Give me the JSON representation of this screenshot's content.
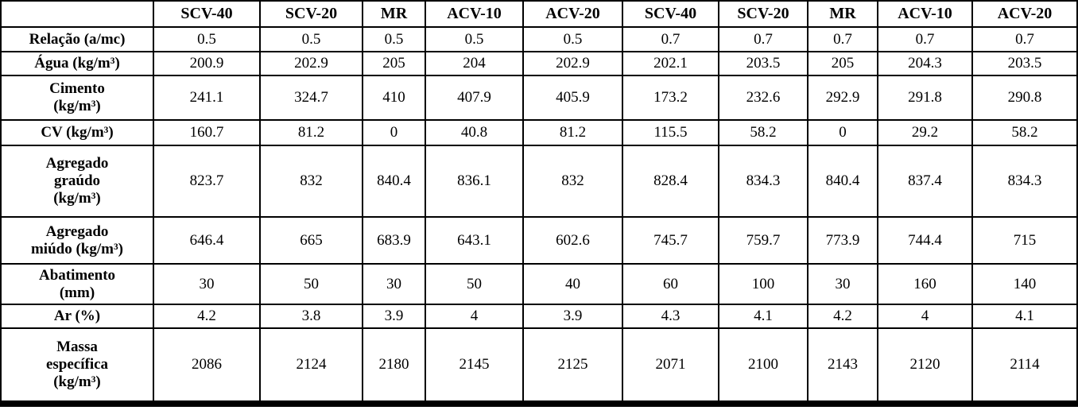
{
  "colors": {
    "border": "#000000",
    "text": "#000000",
    "background": "#ffffff"
  },
  "table": {
    "corner_label": "",
    "columns": [
      "SCV-40",
      "SCV-20",
      "MR",
      "ACV-10",
      "ACV-20",
      "SCV-40",
      "SCV-20",
      "MR",
      "ACV-10",
      "ACV-20"
    ],
    "rows": [
      {
        "label": "Relação (a/mc)",
        "values": [
          "0.5",
          "0.5",
          "0.5",
          "0.5",
          "0.5",
          "0.7",
          "0.7",
          "0.7",
          "0.7",
          "0.7"
        ]
      },
      {
        "label": "Água (kg/m³)",
        "values": [
          "200.9",
          "202.9",
          "205",
          "204",
          "202.9",
          "202.1",
          "203.5",
          "205",
          "204.3",
          "203.5"
        ]
      },
      {
        "label": "Cimento\n(kg/m³)",
        "values": [
          "241.1",
          "324.7",
          "410",
          "407.9",
          "405.9",
          "173.2",
          "232.6",
          "292.9",
          "291.8",
          "290.8"
        ]
      },
      {
        "label": "CV (kg/m³)",
        "values": [
          "160.7",
          "81.2",
          "0",
          "40.8",
          "81.2",
          "115.5",
          "58.2",
          "0",
          "29.2",
          "58.2"
        ]
      },
      {
        "label": "Agregado\ngraúdo\n(kg/m³)",
        "values": [
          "823.7",
          "832",
          "840.4",
          "836.1",
          "832",
          "828.4",
          "834.3",
          "840.4",
          "837.4",
          "834.3"
        ]
      },
      {
        "label": "Agregado\nmiúdo (kg/m³)",
        "values": [
          "646.4",
          "665",
          "683.9",
          "643.1",
          "602.6",
          "745.7",
          "759.7",
          "773.9",
          "744.4",
          "715"
        ]
      },
      {
        "label": "Abatimento\n(mm)",
        "values": [
          "30",
          "50",
          "30",
          "50",
          "40",
          "60",
          "100",
          "30",
          "160",
          "140"
        ]
      },
      {
        "label": "Ar (%)",
        "values": [
          "4.2",
          "3.8",
          "3.9",
          "4",
          "3.9",
          "4.3",
          "4.1",
          "4.2",
          "4",
          "4.1"
        ]
      },
      {
        "label": "Massa\nespecífica\n(kg/m³)",
        "values": [
          "2086",
          "2124",
          "2180",
          "2145",
          "2125",
          "2071",
          "2100",
          "2143",
          "2120",
          "2114"
        ]
      }
    ]
  }
}
